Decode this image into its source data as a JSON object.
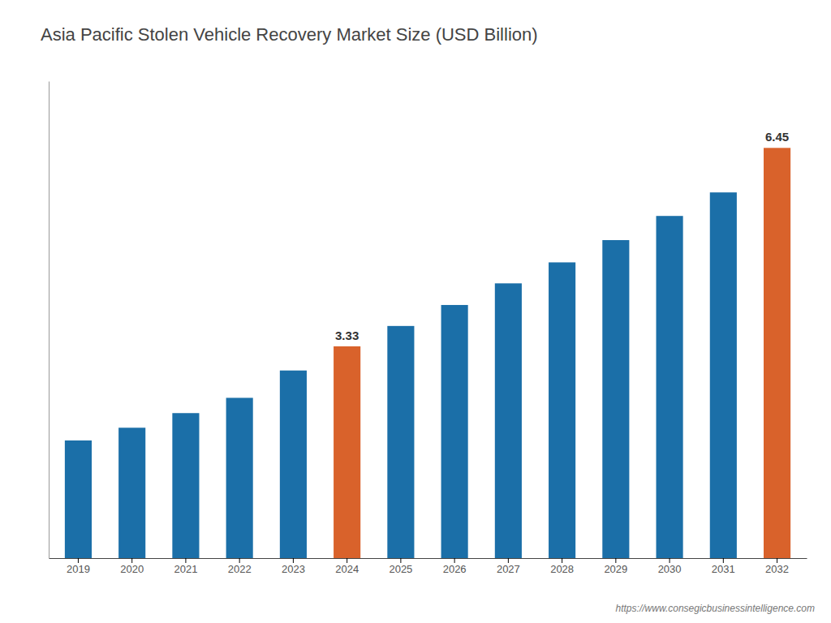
{
  "chart_data": {
    "type": "bar",
    "title": "Asia Pacific Stolen Vehicle Recovery Market Size (USD Billion)",
    "categories": [
      "2019",
      "2020",
      "2021",
      "2022",
      "2023",
      "2024",
      "2025",
      "2026",
      "2027",
      "2028",
      "2029",
      "2030",
      "2031",
      "2032"
    ],
    "values": [
      1.85,
      2.05,
      2.28,
      2.52,
      2.95,
      3.33,
      3.65,
      3.98,
      4.32,
      4.65,
      5.0,
      5.38,
      5.75,
      6.45
    ],
    "value_labels": [
      null,
      null,
      null,
      null,
      null,
      "3.33",
      null,
      null,
      null,
      null,
      null,
      null,
      null,
      "6.45"
    ],
    "colors": [
      "#1b6fa8",
      "#1b6fa8",
      "#1b6fa8",
      "#1b6fa8",
      "#1b6fa8",
      "#d9622b",
      "#1b6fa8",
      "#1b6fa8",
      "#1b6fa8",
      "#1b6fa8",
      "#1b6fa8",
      "#1b6fa8",
      "#1b6fa8",
      "#d9622b"
    ],
    "annotations": [
      "https://www.consegicbusinessintelligence.com"
    ],
    "ylim": [
      0,
      7.5
    ],
    "grid": false,
    "tick_labels": "x"
  }
}
